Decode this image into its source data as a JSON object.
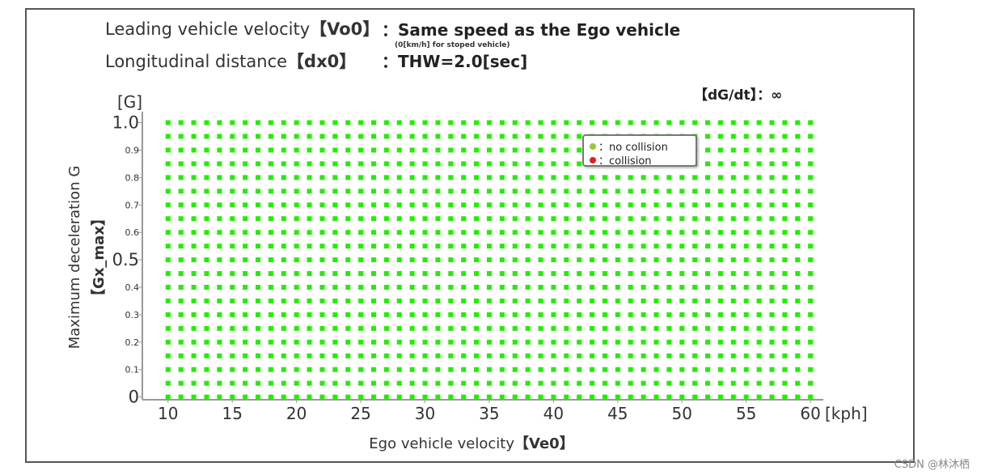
{
  "header": {
    "line1_label": "Leading vehicle velocity",
    "line1_bold": "【Vo0】",
    "line1_value": "：Same speed as the Ego vehicle",
    "line1_note": "(0[km/h] for stoped vehicle)",
    "line2_label": "Longitudinal distance",
    "line2_bold": "【dx0】",
    "line2_value": "：THW=2.0[sec]"
  },
  "dgdt": "【dG/dt】：∞",
  "legend": {
    "no_collision": "：no collision",
    "collision": "：collision",
    "no_collision_color": "#9bc53d",
    "collision_color": "#e02020"
  },
  "watermark": "CSDN @林沐栖",
  "colors": {
    "point": "#22ee00",
    "axis": "#999999"
  },
  "chart_data": {
    "type": "scatter",
    "title": "",
    "xlabel_main": "Ego vehicle velocity",
    "xlabel_bold": "【Ve0】",
    "xunit": "[kph]",
    "ylabel_main": "Maximum deceleration G",
    "ylabel_bold": "【Gx_max】",
    "yunit": "[G]",
    "xlim": [
      8,
      61
    ],
    "ylim": [
      -0.01,
      1.04
    ],
    "xticks": [
      10,
      15,
      20,
      25,
      30,
      35,
      40,
      45,
      50,
      55,
      60
    ],
    "yticks": [
      {
        "value": 1.0,
        "label": "1.0",
        "major": true
      },
      {
        "value": 0.9,
        "label": "0.9",
        "major": false
      },
      {
        "value": 0.8,
        "label": "0.8",
        "major": false
      },
      {
        "value": 0.7,
        "label": "0.7",
        "major": false
      },
      {
        "value": 0.6,
        "label": "0.6",
        "major": false
      },
      {
        "value": 0.5,
        "label": "0.5",
        "major": true
      },
      {
        "value": 0.4,
        "label": "0.4",
        "major": false
      },
      {
        "value": 0.3,
        "label": "0.3",
        "major": false
      },
      {
        "value": 0.2,
        "label": "0.2",
        "major": false
      },
      {
        "value": 0.1,
        "label": "0.1",
        "major": false
      },
      {
        "value": 0.0,
        "label": "0",
        "major": true
      }
    ],
    "grid": false,
    "legend_position": "top-right",
    "series": [
      {
        "name": "no collision",
        "x_start": 10,
        "x_end": 60,
        "x_step": 1,
        "y_start": 0.0,
        "y_end": 1.0,
        "y_step": 0.05
      },
      {
        "name": "collision",
        "points": []
      }
    ]
  }
}
